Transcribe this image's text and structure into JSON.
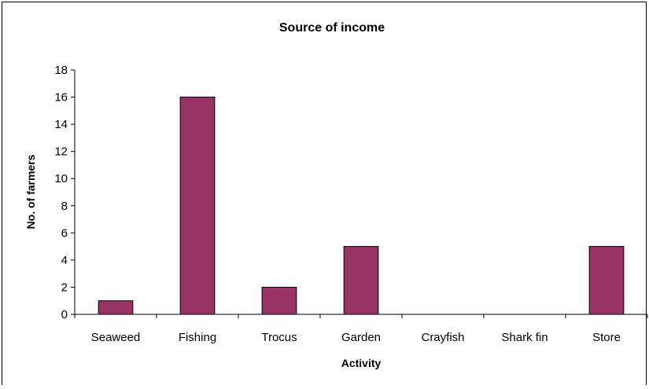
{
  "chart_data": {
    "type": "bar",
    "title": "Source of income",
    "xlabel": "Activity",
    "ylabel": "No. of farmers",
    "categories": [
      "Seaweed",
      "Fishing",
      "Trocus",
      "Garden",
      "Crayfish",
      "Shark fin",
      "Store"
    ],
    "values": [
      1,
      16,
      2,
      5,
      0,
      0,
      5
    ],
    "ylim": [
      0,
      18
    ],
    "yticks": [
      0,
      2,
      4,
      6,
      8,
      10,
      12,
      14,
      16,
      18
    ],
    "grid": false,
    "legend": "none",
    "bar_color": "#993366"
  }
}
